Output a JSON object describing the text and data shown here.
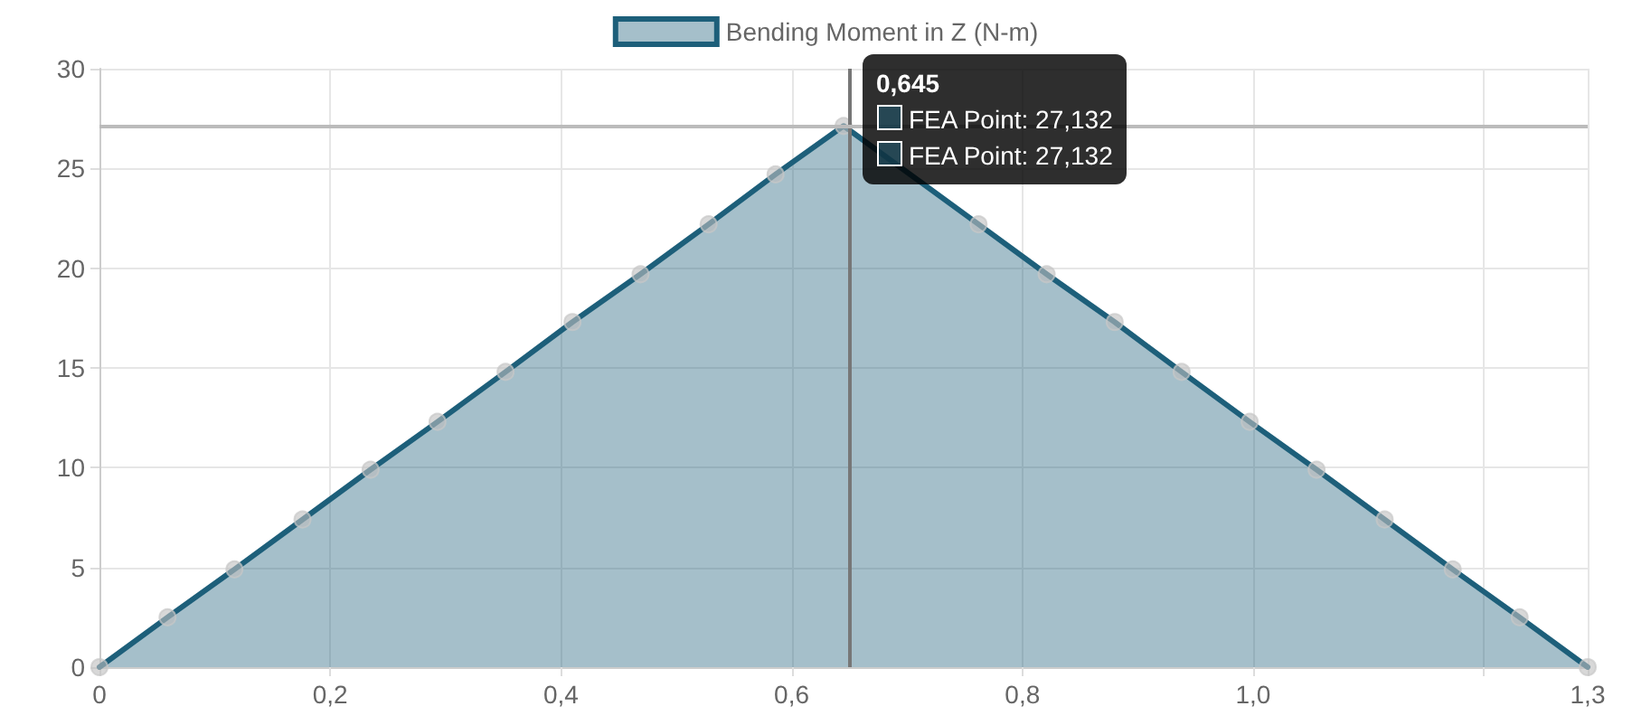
{
  "chart_data": {
    "type": "area",
    "x": [
      0,
      0.059,
      0.117,
      0.176,
      0.235,
      0.293,
      0.352,
      0.41,
      0.469,
      0.528,
      0.586,
      0.645,
      0.704,
      0.762,
      0.821,
      0.88,
      0.938,
      0.997,
      1.055,
      1.114,
      1.173,
      1.231,
      1.29
    ],
    "series": [
      {
        "name": "Bending Moment in Z (N-m)",
        "color": "#1d5f7a",
        "values": [
          0,
          2.5,
          4.9,
          7.4,
          9.9,
          12.3,
          14.8,
          17.3,
          19.7,
          22.2,
          24.7,
          27.132,
          null,
          22.2,
          19.7,
          17.3,
          14.8,
          12.3,
          9.9,
          7.4,
          4.9,
          2.5,
          0
        ]
      }
    ],
    "xlim": [
      0,
      1.29
    ],
    "xticks": [
      0,
      {
        "value": 0.2,
        "label": "0,2"
      },
      {
        "value": 0.4,
        "label": "0,4"
      },
      {
        "value": 0.6,
        "label": "0,6"
      },
      {
        "value": 0.8,
        "label": "0,8"
      },
      {
        "value": 1.0,
        "label": "1,0"
      },
      {
        "value": 1.2,
        "label": null
      },
      {
        "value": 1.29,
        "label": "1,3"
      }
    ],
    "ylim": [
      0,
      30
    ],
    "yticks": [
      0,
      5,
      10,
      15,
      20,
      25,
      30
    ],
    "grid": true,
    "legend": "top",
    "marker": "circle",
    "line_style": "solid",
    "ref_lines": [
      {
        "axis": "x",
        "value": 0.645,
        "color": "#777777"
      },
      {
        "axis": "y",
        "value": 27.132,
        "color": "#bbbbbb"
      }
    ],
    "annotations": [
      {
        "text": "0,645",
        "x": 0.645,
        "y": 27.132
      },
      "FEA Point: 27,132",
      "FEA Point: 27,132"
    ]
  }
}
